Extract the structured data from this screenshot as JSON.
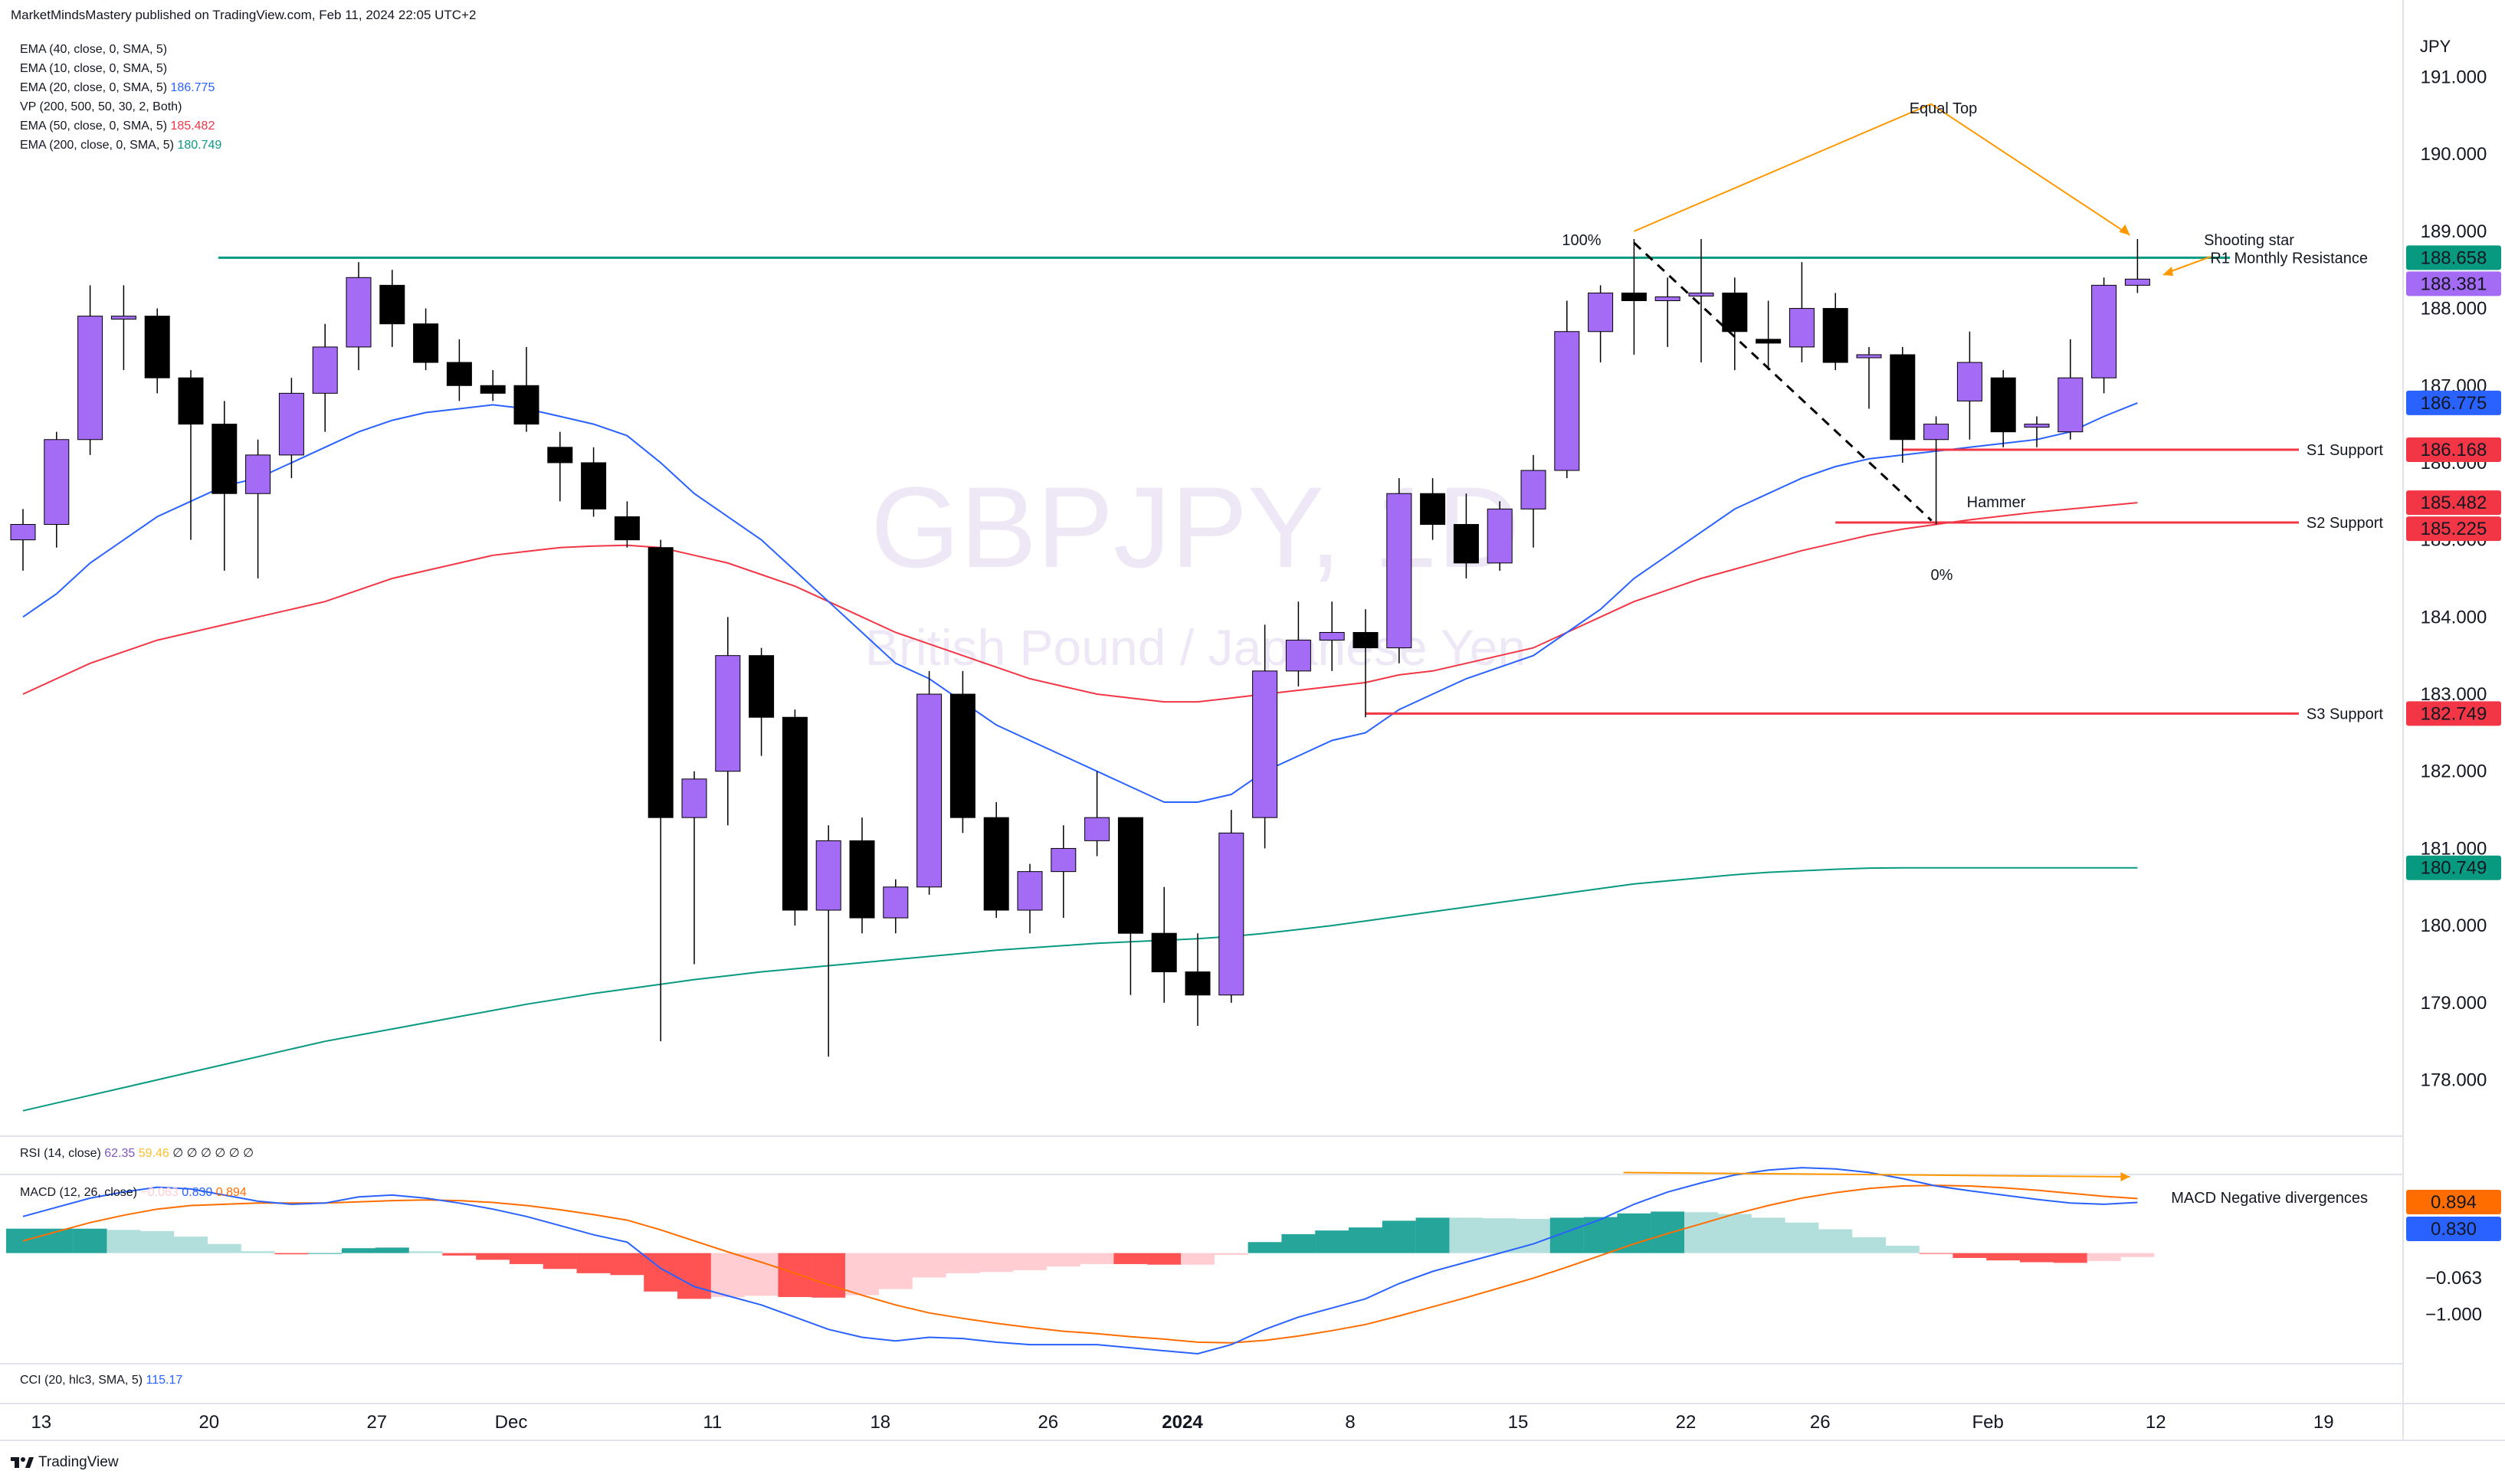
{
  "header": {
    "published": "MarketMindsMastery published on TradingView.com, Feb 11, 2024 22:05 UTC+2",
    "currency": "JPY",
    "footer_logo": "TradingView"
  },
  "indicators": [
    {
      "label": "EMA (40, close, 0, SMA, 5)",
      "value": "",
      "color": "#131722"
    },
    {
      "label": "EMA (10, close, 0, SMA, 5)",
      "value": "",
      "color": "#131722"
    },
    {
      "label": "EMA (20, close, 0, SMA, 5)",
      "value": "186.775",
      "color": "#2962ff"
    },
    {
      "label": "VP (200, 500, 50, 30, 2, Both)",
      "value": "",
      "color": "#131722"
    },
    {
      "label": "EMA (50, close, 0, SMA, 5)",
      "value": "185.482",
      "color": "#f23645"
    },
    {
      "label": "EMA (200, close, 0, SMA, 5)",
      "value": "180.749",
      "color": "#089981"
    }
  ],
  "rsi_pane": {
    "label": "RSI (14, close)",
    "v1": "62.35",
    "v2": "59.46",
    "rest": "∅ ∅ ∅ ∅ ∅ ∅"
  },
  "macd_pane": {
    "label": "MACD (12, 26, close)",
    "hist": "−0.063",
    "macd": "0.830",
    "signal": "0.894"
  },
  "cci_pane": {
    "label": "CCI (20, hlc3, SMA, 5)",
    "value": "115.17"
  },
  "watermark": {
    "symbol": "GBPJPY, 1D",
    "name": "British Pound / Japanese Yen"
  },
  "colors": {
    "bull": "#a46cf5",
    "bear": "#000000",
    "ema20": "#2962ff",
    "ema50": "#f23645",
    "ema200": "#089981",
    "resistance": "#089981",
    "support": "#f23645",
    "macd": "#2962ff",
    "signal": "#ff6d00",
    "hist_up_strong": "#26a69a",
    "hist_up_weak": "#b2dfdb",
    "hist_dn_strong": "#ff5252",
    "hist_dn_weak": "#ffcdd2",
    "annotation": "#ff9800"
  },
  "annotations": {
    "equal_top": "Equal Top",
    "shooting_star": "Shooting star",
    "hammer": "Hammer",
    "fib_100": "100%",
    "fib_0": "0%",
    "macd_div": "MACD Negative divergences",
    "r1": "R1 Monthly Resistance",
    "s1": "S1 Support",
    "s2": "S2 Support",
    "s3": "S3 Support"
  },
  "price_axis": {
    "ticks": [
      "191.000",
      "190.000",
      "189.000",
      "188.000",
      "187.000",
      "186.000",
      "185.000",
      "184.000",
      "183.000",
      "182.000",
      "181.000",
      "180.000",
      "179.000",
      "178.000"
    ],
    "badges": [
      {
        "value": "188.658",
        "color": "#089981"
      },
      {
        "value": "188.381",
        "color": "#a46cf5"
      },
      {
        "value": "186.775",
        "color": "#2962ff"
      },
      {
        "value": "186.168",
        "color": "#f23645"
      },
      {
        "value": "185.482",
        "color": "#f23645"
      },
      {
        "value": "185.225",
        "color": "#f23645"
      },
      {
        "value": "182.749",
        "color": "#f23645"
      },
      {
        "value": "180.749",
        "color": "#089981"
      }
    ],
    "macd_ticks": [
      "-1.000"
    ],
    "macd_badges": [
      {
        "value": "0.894",
        "color": "#ff6d00"
      },
      {
        "value": "0.830",
        "color": "#2962ff"
      },
      {
        "value": "−0.063",
        "color": "#ffffff"
      }
    ]
  },
  "time_axis": [
    {
      "label": "13",
      "bold": false
    },
    {
      "label": "20",
      "bold": false
    },
    {
      "label": "27",
      "bold": false
    },
    {
      "label": "Dec",
      "bold": false
    },
    {
      "label": "11",
      "bold": false
    },
    {
      "label": "18",
      "bold": false
    },
    {
      "label": "26",
      "bold": false
    },
    {
      "label": "2024",
      "bold": true
    },
    {
      "label": "8",
      "bold": false
    },
    {
      "label": "15",
      "bold": false
    },
    {
      "label": "22",
      "bold": false
    },
    {
      "label": "26",
      "bold": false
    },
    {
      "label": "Feb",
      "bold": false
    },
    {
      "label": "12",
      "bold": false
    },
    {
      "label": "19",
      "bold": false
    }
  ],
  "chart_data": {
    "type": "candlestick",
    "symbol": "GBPJPY",
    "interval": "1D",
    "ylim": [
      177.3,
      191.7
    ],
    "levels": {
      "r1": 188.658,
      "s1": 186.168,
      "s2": 185.225,
      "s3": 182.749
    },
    "candles": [
      {
        "o": 185.0,
        "h": 185.4,
        "l": 184.6,
        "c": 185.2
      },
      {
        "o": 185.2,
        "h": 186.4,
        "l": 184.9,
        "c": 186.3
      },
      {
        "o": 186.3,
        "h": 188.3,
        "l": 186.1,
        "c": 187.9
      },
      {
        "o": 187.9,
        "h": 188.3,
        "l": 187.2,
        "c": 187.9
      },
      {
        "o": 187.9,
        "h": 188.0,
        "l": 186.9,
        "c": 187.1
      },
      {
        "o": 187.1,
        "h": 187.2,
        "l": 185.0,
        "c": 186.5
      },
      {
        "o": 186.5,
        "h": 186.8,
        "l": 184.6,
        "c": 185.6
      },
      {
        "o": 185.6,
        "h": 186.3,
        "l": 184.5,
        "c": 186.1
      },
      {
        "o": 186.1,
        "h": 187.1,
        "l": 185.8,
        "c": 186.9
      },
      {
        "o": 186.9,
        "h": 187.8,
        "l": 186.4,
        "c": 187.5
      },
      {
        "o": 187.5,
        "h": 188.6,
        "l": 187.2,
        "c": 188.4
      },
      {
        "o": 188.3,
        "h": 188.5,
        "l": 187.5,
        "c": 187.8
      },
      {
        "o": 187.8,
        "h": 188.0,
        "l": 187.2,
        "c": 187.3
      },
      {
        "o": 187.3,
        "h": 187.6,
        "l": 186.8,
        "c": 187.0
      },
      {
        "o": 187.0,
        "h": 187.2,
        "l": 186.8,
        "c": 186.9
      },
      {
        "o": 187.0,
        "h": 187.5,
        "l": 186.4,
        "c": 186.5
      },
      {
        "o": 186.2,
        "h": 186.4,
        "l": 185.5,
        "c": 186.0
      },
      {
        "o": 186.0,
        "h": 186.2,
        "l": 185.3,
        "c": 185.4
      },
      {
        "o": 185.3,
        "h": 185.5,
        "l": 184.9,
        "c": 185.0
      },
      {
        "o": 184.9,
        "h": 185.0,
        "l": 178.5,
        "c": 181.4
      },
      {
        "o": 181.4,
        "h": 182.0,
        "l": 179.5,
        "c": 181.9
      },
      {
        "o": 182.0,
        "h": 184.0,
        "l": 181.3,
        "c": 183.5
      },
      {
        "o": 183.5,
        "h": 183.6,
        "l": 182.2,
        "c": 182.7
      },
      {
        "o": 182.7,
        "h": 182.8,
        "l": 180.0,
        "c": 180.2
      },
      {
        "o": 180.2,
        "h": 181.3,
        "l": 178.3,
        "c": 181.1
      },
      {
        "o": 181.1,
        "h": 181.4,
        "l": 179.9,
        "c": 180.1
      },
      {
        "o": 180.1,
        "h": 180.6,
        "l": 179.9,
        "c": 180.5
      },
      {
        "o": 180.5,
        "h": 183.3,
        "l": 180.4,
        "c": 183.0
      },
      {
        "o": 183.0,
        "h": 183.3,
        "l": 181.2,
        "c": 181.4
      },
      {
        "o": 181.4,
        "h": 181.6,
        "l": 180.1,
        "c": 180.2
      },
      {
        "o": 180.2,
        "h": 180.8,
        "l": 179.9,
        "c": 180.7
      },
      {
        "o": 180.7,
        "h": 181.3,
        "l": 180.1,
        "c": 181.0
      },
      {
        "o": 181.1,
        "h": 182.0,
        "l": 180.9,
        "c": 181.4
      },
      {
        "o": 181.4,
        "h": 181.4,
        "l": 179.1,
        "c": 179.9
      },
      {
        "o": 179.9,
        "h": 180.5,
        "l": 179.0,
        "c": 179.4
      },
      {
        "o": 179.4,
        "h": 179.9,
        "l": 178.7,
        "c": 179.1
      },
      {
        "o": 179.1,
        "h": 181.5,
        "l": 179.0,
        "c": 181.2
      },
      {
        "o": 181.4,
        "h": 183.9,
        "l": 181.0,
        "c": 183.3
      },
      {
        "o": 183.3,
        "h": 184.2,
        "l": 183.1,
        "c": 183.7
      },
      {
        "o": 183.7,
        "h": 184.2,
        "l": 183.3,
        "c": 183.8
      },
      {
        "o": 183.8,
        "h": 184.1,
        "l": 182.7,
        "c": 183.6
      },
      {
        "o": 183.6,
        "h": 185.8,
        "l": 183.4,
        "c": 185.6
      },
      {
        "o": 185.6,
        "h": 185.8,
        "l": 185.0,
        "c": 185.2
      },
      {
        "o": 185.2,
        "h": 185.6,
        "l": 184.5,
        "c": 184.7
      },
      {
        "o": 184.7,
        "h": 185.5,
        "l": 184.6,
        "c": 185.4
      },
      {
        "o": 185.4,
        "h": 186.1,
        "l": 184.9,
        "c": 185.9
      },
      {
        "o": 185.9,
        "h": 188.1,
        "l": 185.8,
        "c": 187.7
      },
      {
        "o": 187.7,
        "h": 188.3,
        "l": 187.3,
        "c": 188.2
      },
      {
        "o": 188.2,
        "h": 188.9,
        "l": 187.4,
        "c": 188.1
      },
      {
        "o": 188.1,
        "h": 188.4,
        "l": 187.5,
        "c": 188.15
      },
      {
        "o": 188.2,
        "h": 188.9,
        "l": 187.3,
        "c": 188.2
      },
      {
        "o": 188.2,
        "h": 188.4,
        "l": 187.2,
        "c": 187.7
      },
      {
        "o": 187.6,
        "h": 188.1,
        "l": 187.2,
        "c": 187.55
      },
      {
        "o": 187.5,
        "h": 188.6,
        "l": 187.3,
        "c": 188.0
      },
      {
        "o": 188.0,
        "h": 188.2,
        "l": 187.2,
        "c": 187.3
      },
      {
        "o": 187.4,
        "h": 187.5,
        "l": 186.7,
        "c": 187.4
      },
      {
        "o": 187.4,
        "h": 187.5,
        "l": 186.0,
        "c": 186.3
      },
      {
        "o": 186.3,
        "h": 186.6,
        "l": 185.2,
        "c": 186.5
      },
      {
        "o": 186.8,
        "h": 187.7,
        "l": 186.3,
        "c": 187.3
      },
      {
        "o": 187.1,
        "h": 187.2,
        "l": 186.2,
        "c": 186.4
      },
      {
        "o": 186.5,
        "h": 186.6,
        "l": 186.2,
        "c": 186.5
      },
      {
        "o": 186.4,
        "h": 187.6,
        "l": 186.3,
        "c": 187.1
      },
      {
        "o": 187.1,
        "h": 188.4,
        "l": 186.9,
        "c": 188.3
      },
      {
        "o": 188.3,
        "h": 188.9,
        "l": 188.2,
        "c": 188.38
      }
    ],
    "ema20": [
      184.0,
      184.3,
      184.7,
      185.0,
      185.3,
      185.5,
      185.7,
      185.8,
      186.0,
      186.2,
      186.4,
      186.55,
      186.65,
      186.7,
      186.75,
      186.7,
      186.6,
      186.5,
      186.35,
      186.0,
      185.6,
      185.3,
      185.0,
      184.6,
      184.2,
      183.8,
      183.4,
      183.2,
      182.9,
      182.6,
      182.4,
      182.2,
      182.0,
      181.8,
      181.6,
      181.6,
      181.7,
      182.0,
      182.2,
      182.4,
      182.5,
      182.8,
      183.0,
      183.2,
      183.35,
      183.5,
      183.8,
      184.1,
      184.5,
      184.8,
      185.1,
      185.4,
      185.6,
      185.8,
      185.95,
      186.05,
      186.1,
      186.15,
      186.2,
      186.25,
      186.3,
      186.4,
      186.6,
      186.775
    ],
    "ema50": [
      183.0,
      183.2,
      183.4,
      183.55,
      183.7,
      183.8,
      183.9,
      184.0,
      184.1,
      184.2,
      184.35,
      184.5,
      184.6,
      184.7,
      184.8,
      184.85,
      184.9,
      184.92,
      184.93,
      184.9,
      184.8,
      184.7,
      184.55,
      184.4,
      184.2,
      184.0,
      183.8,
      183.65,
      183.5,
      183.35,
      183.2,
      183.1,
      183.0,
      182.95,
      182.9,
      182.9,
      182.95,
      183.0,
      183.05,
      183.1,
      183.15,
      183.25,
      183.3,
      183.4,
      183.5,
      183.6,
      183.8,
      184.0,
      184.2,
      184.35,
      184.5,
      184.62,
      184.74,
      184.86,
      184.96,
      185.06,
      185.14,
      185.2,
      185.26,
      185.31,
      185.36,
      185.4,
      185.44,
      185.482
    ],
    "ema200": [
      177.6,
      177.7,
      177.8,
      177.9,
      178.0,
      178.1,
      178.2,
      178.3,
      178.4,
      178.5,
      178.58,
      178.66,
      178.74,
      178.82,
      178.9,
      178.98,
      179.05,
      179.12,
      179.18,
      179.24,
      179.3,
      179.35,
      179.4,
      179.44,
      179.48,
      179.52,
      179.56,
      179.6,
      179.64,
      179.68,
      179.71,
      179.74,
      179.77,
      179.79,
      179.81,
      179.83,
      179.86,
      179.9,
      179.95,
      180.0,
      180.06,
      180.12,
      180.18,
      180.24,
      180.3,
      180.36,
      180.42,
      180.48,
      180.54,
      180.58,
      180.62,
      180.66,
      180.69,
      180.71,
      180.73,
      180.745,
      180.749,
      180.749,
      180.749,
      180.749,
      180.749,
      180.749,
      180.749,
      180.749
    ],
    "macd": {
      "macd": [
        0.6,
        0.75,
        0.9,
        1.0,
        1.08,
        1.05,
        0.95,
        0.85,
        0.8,
        0.82,
        0.92,
        0.95,
        0.9,
        0.82,
        0.72,
        0.6,
        0.45,
        0.3,
        0.18,
        -0.25,
        -0.55,
        -0.7,
        -0.85,
        -1.05,
        -1.25,
        -1.38,
        -1.44,
        -1.38,
        -1.4,
        -1.46,
        -1.5,
        -1.5,
        -1.5,
        -1.55,
        -1.6,
        -1.65,
        -1.5,
        -1.25,
        -1.05,
        -0.9,
        -0.75,
        -0.5,
        -0.3,
        -0.15,
        -0.0,
        0.15,
        0.35,
        0.55,
        0.8,
        1.0,
        1.15,
        1.28,
        1.36,
        1.4,
        1.38,
        1.32,
        1.22,
        1.1,
        1.02,
        0.95,
        0.88,
        0.82,
        0.8,
        0.83
      ],
      "signal": [
        0.2,
        0.35,
        0.5,
        0.62,
        0.72,
        0.78,
        0.8,
        0.82,
        0.82,
        0.82,
        0.84,
        0.86,
        0.87,
        0.86,
        0.83,
        0.78,
        0.71,
        0.63,
        0.54,
        0.38,
        0.2,
        0.02,
        -0.15,
        -0.33,
        -0.52,
        -0.69,
        -0.85,
        -0.98,
        -1.07,
        -1.15,
        -1.22,
        -1.28,
        -1.32,
        -1.37,
        -1.41,
        -1.46,
        -1.47,
        -1.43,
        -1.36,
        -1.27,
        -1.17,
        -1.03,
        -0.88,
        -0.73,
        -0.57,
        -0.41,
        -0.23,
        -0.04,
        0.15,
        0.32,
        0.48,
        0.64,
        0.78,
        0.9,
        0.99,
        1.06,
        1.1,
        1.11,
        1.1,
        1.07,
        1.03,
        0.98,
        0.93,
        0.894
      ],
      "ylim": [
        -1.75,
        1.2
      ]
    }
  }
}
